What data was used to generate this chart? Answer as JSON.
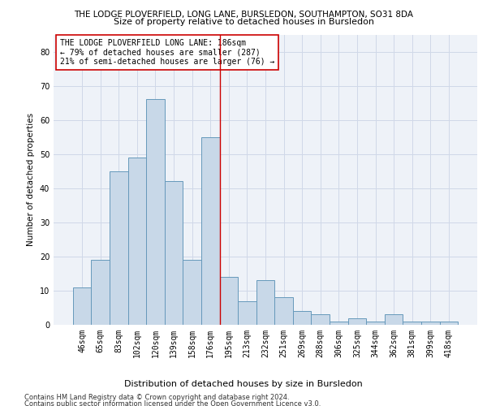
{
  "title1": "THE LODGE PLOVERFIELD, LONG LANE, BURSLEDON, SOUTHAMPTON, SO31 8DA",
  "title2": "Size of property relative to detached houses in Bursledon",
  "xlabel": "Distribution of detached houses by size in Bursledon",
  "ylabel": "Number of detached properties",
  "footer1": "Contains HM Land Registry data © Crown copyright and database right 2024.",
  "footer2": "Contains public sector information licensed under the Open Government Licence v3.0.",
  "bar_labels": [
    "46sqm",
    "65sqm",
    "83sqm",
    "102sqm",
    "120sqm",
    "139sqm",
    "158sqm",
    "176sqm",
    "195sqm",
    "213sqm",
    "232sqm",
    "251sqm",
    "269sqm",
    "288sqm",
    "306sqm",
    "325sqm",
    "344sqm",
    "362sqm",
    "381sqm",
    "399sqm",
    "418sqm"
  ],
  "bar_values": [
    11,
    19,
    45,
    49,
    66,
    42,
    19,
    55,
    14,
    7,
    13,
    8,
    4,
    3,
    1,
    2,
    1,
    3,
    1,
    1,
    1
  ],
  "bar_color": "#c8d8e8",
  "bar_edge_color": "#6699bb",
  "vline_x": 7.5,
  "vline_color": "#cc0000",
  "annotation_text": "THE LODGE PLOVERFIELD LONG LANE: 186sqm\n← 79% of detached houses are smaller (287)\n21% of semi-detached houses are larger (76) →",
  "annotation_box_color": "#ffffff",
  "annotation_box_edge": "#cc0000",
  "ylim": [
    0,
    85
  ],
  "yticks": [
    0,
    10,
    20,
    30,
    40,
    50,
    60,
    70,
    80
  ],
  "grid_color": "#d0d8e8",
  "bg_color": "#eef2f8",
  "title1_fontsize": 7.5,
  "title2_fontsize": 8.0,
  "xlabel_fontsize": 8.0,
  "ylabel_fontsize": 7.5,
  "tick_fontsize": 7.0,
  "annot_fontsize": 7.0,
  "footer_fontsize": 6.0
}
